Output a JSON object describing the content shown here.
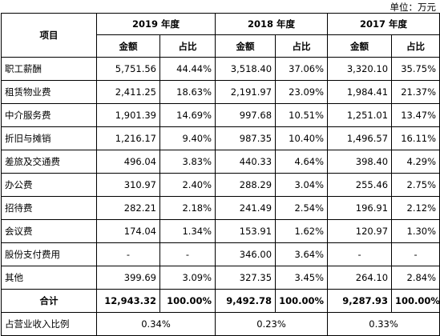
{
  "unit": "单位：万元",
  "header": {
    "item": "项目",
    "years": [
      "2019 年度",
      "2018 年度",
      "2017 年度"
    ],
    "amount": "金额",
    "ratio": "占比"
  },
  "rows": [
    {
      "label": "职工薪酬",
      "v2019": "5,751.56",
      "r2019": "44.44%",
      "v2018": "3,518.40",
      "r2018": "37.06%",
      "v2017": "3,320.10",
      "r2017": "35.75%"
    },
    {
      "label": "租赁物业费",
      "v2019": "2,411.25",
      "r2019": "18.63%",
      "v2018": "2,191.97",
      "r2018": "23.09%",
      "v2017": "1,984.41",
      "r2017": "21.37%"
    },
    {
      "label": "中介服务费",
      "v2019": "1,901.39",
      "r2019": "14.69%",
      "v2018": "997.68",
      "r2018": "10.51%",
      "v2017": "1,251.01",
      "r2017": "13.47%"
    },
    {
      "label": "折旧与摊销",
      "v2019": "1,216.17",
      "r2019": "9.40%",
      "v2018": "987.35",
      "r2018": "10.40%",
      "v2017": "1,496.57",
      "r2017": "16.11%"
    },
    {
      "label": "差旅及交通费",
      "v2019": "496.04",
      "r2019": "3.83%",
      "v2018": "440.33",
      "r2018": "4.64%",
      "v2017": "398.40",
      "r2017": "4.29%"
    },
    {
      "label": "办公费",
      "v2019": "310.97",
      "r2019": "2.40%",
      "v2018": "288.29",
      "r2018": "3.04%",
      "v2017": "255.46",
      "r2017": "2.75%"
    },
    {
      "label": "招待费",
      "v2019": "282.21",
      "r2019": "2.18%",
      "v2018": "241.49",
      "r2018": "2.54%",
      "v2017": "196.91",
      "r2017": "2.12%"
    },
    {
      "label": "会议费",
      "v2019": "174.04",
      "r2019": "1.34%",
      "v2018": "153.91",
      "r2018": "1.62%",
      "v2017": "120.97",
      "r2017": "1.30%"
    },
    {
      "label": "股份支付费用",
      "v2019": "-",
      "r2019": "-",
      "v2018": "346.00",
      "r2018": "3.64%",
      "v2017": "-",
      "r2017": "-"
    },
    {
      "label": "其他",
      "v2019": "399.69",
      "r2019": "3.09%",
      "v2018": "327.35",
      "r2018": "3.45%",
      "v2017": "264.10",
      "r2017": "2.84%"
    }
  ],
  "total": {
    "label": "合计",
    "v2019": "12,943.32",
    "r2019": "100.00%",
    "v2018": "9,492.78",
    "r2018": "100.00%",
    "v2017": "9,287.93",
    "r2017": "100.00%"
  },
  "revenue_ratio": {
    "label": "占营业收入比例",
    "y2019": "0.34%",
    "y2018": "0.23%",
    "y2017": "0.33%"
  }
}
